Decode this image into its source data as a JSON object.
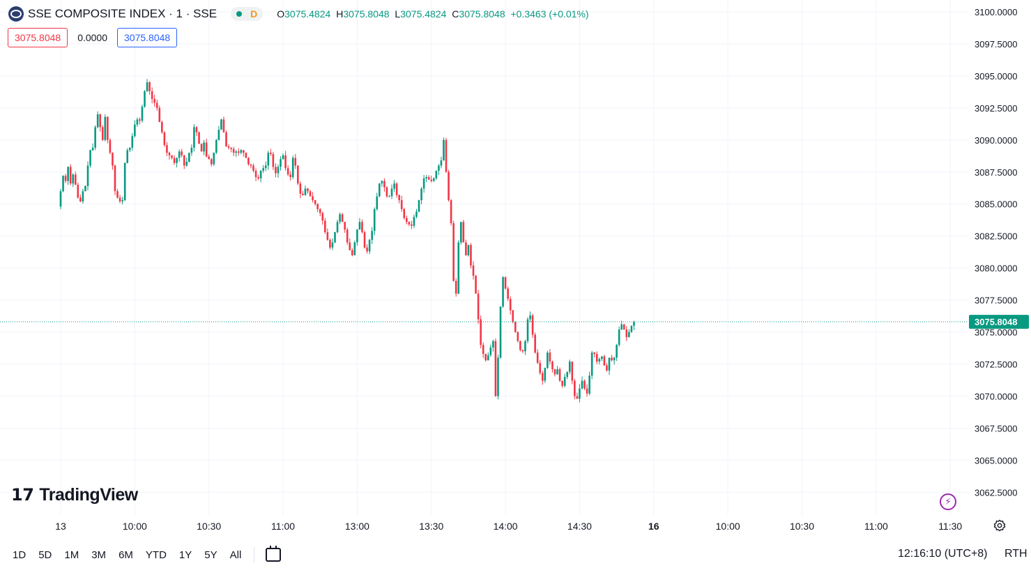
{
  "header": {
    "symbol_title": "SSE COMPOSITE INDEX · 1 · SSE",
    "d_tag": "D",
    "ohlc": {
      "o_label": "O",
      "o": "3075.4824",
      "h_label": "H",
      "h": "3075.8048",
      "l_label": "L",
      "l": "3075.4824",
      "c_label": "C",
      "c": "3075.8048",
      "change": "+0.3463 (+0.01%)"
    }
  },
  "values_row": {
    "sell": "3075.8048",
    "spread": "0.0000",
    "buy": "3075.8048"
  },
  "brand": "TradingView",
  "last_price_label": "3075.8048",
  "ranges": [
    "1D",
    "5D",
    "1M",
    "3M",
    "6M",
    "YTD",
    "1Y",
    "5Y",
    "All"
  ],
  "clock": "12:16:10 (UTC+8)",
  "session": "RTH",
  "colors": {
    "up": "#089981",
    "down": "#f23645",
    "grid": "#f0f3fa",
    "text": "#131722"
  },
  "icons": {
    "settings": "gear-icon",
    "alert": "lightning-icon",
    "goto_date": "calendar-icon",
    "logo": "exchange-logo-icon"
  },
  "chart_data": {
    "type": "candlestick",
    "ylim": [
      3061.0,
      3100.8
    ],
    "y_ticks": [
      "3100.0000",
      "3097.5000",
      "3095.0000",
      "3092.5000",
      "3090.0000",
      "3087.5000",
      "3085.0000",
      "3082.5000",
      "3080.0000",
      "3077.5000",
      "3075.0000",
      "3072.5000",
      "3070.0000",
      "3067.5000",
      "3065.0000",
      "3062.5000"
    ],
    "x_ticks": [
      {
        "label": "13",
        "bar": 0,
        "bold": false
      },
      {
        "label": "10:00",
        "bar": 30,
        "bold": false
      },
      {
        "label": "10:30",
        "bar": 60,
        "bold": false
      },
      {
        "label": "11:00",
        "bar": 90,
        "bold": false
      },
      {
        "label": "13:00",
        "bar": 120,
        "bold": false
      },
      {
        "label": "13:30",
        "bar": 150,
        "bold": false
      },
      {
        "label": "14:00",
        "bar": 180,
        "bold": false
      },
      {
        "label": "14:30",
        "bar": 210,
        "bold": false
      },
      {
        "label": "16",
        "bar": 240,
        "bold": true
      },
      {
        "label": "10:00",
        "bar": 270,
        "bold": false
      },
      {
        "label": "10:30",
        "bar": 300,
        "bold": false
      },
      {
        "label": "11:00",
        "bar": 330,
        "bold": false
      },
      {
        "label": "11:30",
        "bar": 360,
        "bold": false
      }
    ],
    "close_path": [
      [
        0,
        3086.0
      ],
      [
        1,
        3087.2
      ],
      [
        2,
        3086.8
      ],
      [
        3,
        3087.9
      ],
      [
        4,
        3086.6
      ],
      [
        5,
        3087.3
      ],
      [
        6,
        3086.5
      ],
      [
        7,
        3085.5
      ],
      [
        8,
        3085.2
      ],
      [
        9,
        3086.0
      ],
      [
        10,
        3086.4
      ],
      [
        11,
        3088.0
      ],
      [
        12,
        3089.2
      ],
      [
        13,
        3089.4
      ],
      [
        14,
        3091.0
      ],
      [
        15,
        3092.0
      ],
      [
        16,
        3091.0
      ],
      [
        17,
        3090.0
      ],
      [
        18,
        3091.8
      ],
      [
        19,
        3090.0
      ],
      [
        20,
        3089.0
      ],
      [
        21,
        3088.0
      ],
      [
        22,
        3086.0
      ],
      [
        23,
        3085.5
      ],
      [
        24,
        3085.2
      ],
      [
        25,
        3085.3
      ],
      [
        26,
        3088.2
      ],
      [
        27,
        3089.2
      ],
      [
        28,
        3089.4
      ],
      [
        29,
        3090.3
      ],
      [
        30,
        3091.2
      ],
      [
        31,
        3091.6
      ],
      [
        32,
        3091.5
      ],
      [
        33,
        3092.6
      ],
      [
        34,
        3093.8
      ],
      [
        35,
        3094.5
      ],
      [
        36,
        3093.8
      ],
      [
        37,
        3093.2
      ],
      [
        38,
        3092.9
      ],
      [
        39,
        3092.5
      ],
      [
        40,
        3091.4
      ],
      [
        41,
        3090.6
      ],
      [
        42,
        3089.6
      ],
      [
        43,
        3089.0
      ],
      [
        44,
        3088.8
      ],
      [
        45,
        3088.6
      ],
      [
        46,
        3088.2
      ],
      [
        47,
        3088.6
      ],
      [
        48,
        3089.1
      ],
      [
        49,
        3088.8
      ],
      [
        50,
        3088.0
      ],
      [
        51,
        3088.3
      ],
      [
        52,
        3089.0
      ],
      [
        53,
        3089.4
      ],
      [
        54,
        3091.0
      ],
      [
        55,
        3090.6
      ],
      [
        56,
        3089.7
      ],
      [
        57,
        3089.1
      ],
      [
        58,
        3089.8
      ],
      [
        59,
        3088.7
      ],
      [
        60,
        3088.5
      ],
      [
        61,
        3088.1
      ],
      [
        62,
        3089.0
      ],
      [
        63,
        3090.0
      ],
      [
        64,
        3090.8
      ],
      [
        65,
        3091.6
      ],
      [
        66,
        3090.6
      ],
      [
        67,
        3089.5
      ],
      [
        68,
        3089.4
      ],
      [
        69,
        3089.3
      ],
      [
        70,
        3089.0
      ],
      [
        71,
        3089.1
      ],
      [
        72,
        3089.0
      ],
      [
        73,
        3089.2
      ],
      [
        74,
        3089.0
      ],
      [
        75,
        3088.6
      ],
      [
        76,
        3088.1
      ],
      [
        77,
        3088.0
      ],
      [
        78,
        3087.6
      ],
      [
        79,
        3087.1
      ],
      [
        80,
        3087.0
      ],
      [
        81,
        3087.6
      ],
      [
        82,
        3087.8
      ],
      [
        83,
        3088.0
      ],
      [
        84,
        3089.0
      ],
      [
        85,
        3088.9
      ],
      [
        86,
        3087.9
      ],
      [
        87,
        3087.4
      ],
      [
        88,
        3087.9
      ],
      [
        89,
        3088.5
      ],
      [
        90,
        3088.8
      ],
      [
        91,
        3087.8
      ],
      [
        92,
        3087.3
      ],
      [
        93,
        3087.1
      ],
      [
        94,
        3088.6
      ],
      [
        95,
        3088.0
      ],
      [
        96,
        3086.6
      ],
      [
        97,
        3085.8
      ],
      [
        98,
        3085.7
      ],
      [
        99,
        3086.2
      ],
      [
        100,
        3086.0
      ],
      [
        101,
        3085.6
      ],
      [
        102,
        3085.3
      ],
      [
        103,
        3085.0
      ],
      [
        104,
        3084.6
      ],
      [
        105,
        3084.3
      ],
      [
        106,
        3083.7
      ],
      [
        107,
        3082.8
      ],
      [
        108,
        3082.2
      ],
      [
        109,
        3081.6
      ],
      [
        110,
        3082.0
      ],
      [
        111,
        3082.8
      ],
      [
        112,
        3083.6
      ],
      [
        113,
        3084.2
      ],
      [
        114,
        3083.6
      ],
      [
        115,
        3083.0
      ],
      [
        116,
        3082.0
      ],
      [
        117,
        3081.4
      ],
      [
        118,
        3081.0
      ],
      [
        119,
        3082.0
      ],
      [
        120,
        3083.0
      ],
      [
        121,
        3083.6
      ],
      [
        122,
        3082.8
      ],
      [
        123,
        3081.6
      ],
      [
        124,
        3081.3
      ],
      [
        125,
        3082.2
      ],
      [
        126,
        3082.9
      ],
      [
        127,
        3084.6
      ],
      [
        128,
        3085.6
      ],
      [
        129,
        3086.6
      ],
      [
        130,
        3086.8
      ],
      [
        131,
        3086.3
      ],
      [
        132,
        3085.6
      ],
      [
        133,
        3085.6
      ],
      [
        134,
        3086.2
      ],
      [
        135,
        3086.6
      ],
      [
        136,
        3085.7
      ],
      [
        137,
        3085.3
      ],
      [
        138,
        3084.6
      ],
      [
        139,
        3083.9
      ],
      [
        140,
        3083.6
      ],
      [
        141,
        3083.4
      ],
      [
        142,
        3083.3
      ],
      [
        143,
        3084.0
      ],
      [
        144,
        3084.4
      ],
      [
        145,
        3085.3
      ],
      [
        146,
        3086.2
      ],
      [
        147,
        3087.0
      ],
      [
        148,
        3087.1
      ],
      [
        149,
        3086.9
      ],
      [
        150,
        3086.8
      ],
      [
        151,
        3087.0
      ],
      [
        152,
        3087.6
      ],
      [
        153,
        3088.0
      ],
      [
        154,
        3088.4
      ],
      [
        155,
        3090.0
      ],
      [
        156,
        3087.5
      ],
      [
        157,
        3085.3
      ],
      [
        158,
        3083.5
      ],
      [
        159,
        3079.0
      ],
      [
        160,
        3078.0
      ],
      [
        161,
        3082.0
      ],
      [
        162,
        3083.6
      ],
      [
        163,
        3082.0
      ],
      [
        164,
        3081.0
      ],
      [
        165,
        3081.8
      ],
      [
        166,
        3080.2
      ],
      [
        167,
        3079.4
      ],
      [
        168,
        3078.0
      ],
      [
        169,
        3076.0
      ],
      [
        170,
        3074.0
      ],
      [
        171,
        3073.3
      ],
      [
        172,
        3072.8
      ],
      [
        173,
        3073.2
      ],
      [
        174,
        3073.8
      ],
      [
        175,
        3074.3
      ],
      [
        176,
        3070.0
      ],
      [
        177,
        3073.0
      ],
      [
        178,
        3077.0
      ],
      [
        179,
        3079.3
      ],
      [
        180,
        3078.4
      ],
      [
        181,
        3077.6
      ],
      [
        182,
        3076.7
      ],
      [
        183,
        3075.8
      ],
      [
        184,
        3075.0
      ],
      [
        185,
        3074.3
      ],
      [
        186,
        3073.6
      ],
      [
        187,
        3073.5
      ],
      [
        188,
        3074.3
      ],
      [
        189,
        3076.0
      ],
      [
        190,
        3076.3
      ],
      [
        191,
        3074.8
      ],
      [
        192,
        3073.4
      ],
      [
        193,
        3072.6
      ],
      [
        194,
        3071.8
      ],
      [
        195,
        3071.2
      ],
      [
        196,
        3072.2
      ],
      [
        197,
        3073.4
      ],
      [
        198,
        3072.7
      ],
      [
        199,
        3072.1
      ],
      [
        200,
        3071.7
      ],
      [
        201,
        3072.1
      ],
      [
        202,
        3071.2
      ],
      [
        203,
        3070.8
      ],
      [
        204,
        3071.5
      ],
      [
        205,
        3071.9
      ],
      [
        206,
        3072.7
      ],
      [
        207,
        3071.2
      ],
      [
        208,
        3070.0
      ],
      [
        209,
        3069.8
      ],
      [
        210,
        3070.6
      ],
      [
        211,
        3071.2
      ],
      [
        212,
        3070.6
      ],
      [
        213,
        3070.2
      ],
      [
        214,
        3071.6
      ],
      [
        215,
        3073.4
      ],
      [
        216,
        3073.3
      ],
      [
        217,
        3072.7
      ],
      [
        218,
        3072.9
      ],
      [
        219,
        3073.1
      ],
      [
        220,
        3072.4
      ],
      [
        221,
        3072.0
      ],
      [
        222,
        3073.0
      ],
      [
        223,
        3072.8
      ],
      [
        224,
        3073.0
      ],
      [
        225,
        3074.0
      ],
      [
        226,
        3075.2
      ],
      [
        227,
        3075.6
      ],
      [
        228,
        3075.2
      ],
      [
        229,
        3074.6
      ],
      [
        230,
        3075.0
      ],
      [
        231,
        3075.5
      ],
      [
        232,
        3075.8
      ]
    ],
    "last_price": 3075.8048
  }
}
